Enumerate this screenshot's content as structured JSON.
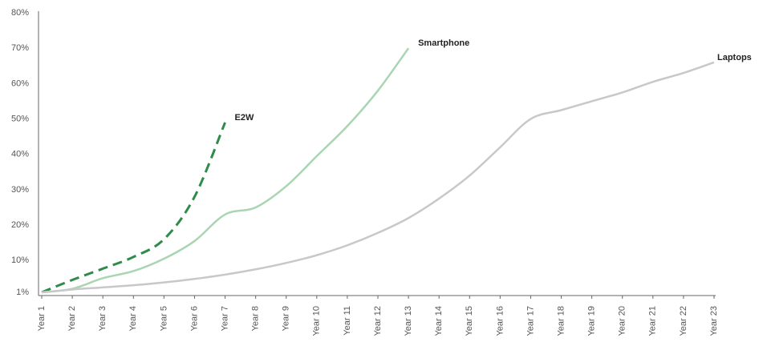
{
  "chart_data": {
    "type": "line",
    "categories": [
      "Year 1",
      "Year 2",
      "Year 3",
      "Year 4",
      "Year 5",
      "Year 6",
      "Year 7",
      "Year 8",
      "Year 9",
      "Year 10",
      "Year 11",
      "Year 12",
      "Year 13",
      "Year 14",
      "Year 15",
      "Year 16",
      "Year 17",
      "Year 18",
      "Year 19",
      "Year 20",
      "Year 21",
      "Year 22",
      "Year 23"
    ],
    "series": [
      {
        "name": "E2W",
        "color": "#2e8b4a",
        "dashed": true,
        "values": [
          1,
          4.5,
          7.7,
          11,
          16,
          28,
          49,
          null,
          null,
          null,
          null,
          null,
          null,
          null,
          null,
          null,
          null,
          null,
          null,
          null,
          null,
          null,
          null
        ]
      },
      {
        "name": "Smartphone",
        "color": "#a9d5b2",
        "dashed": false,
        "values": [
          1,
          2,
          5,
          7,
          10.5,
          15.5,
          23,
          25,
          31,
          39.5,
          48,
          58,
          70,
          null,
          null,
          null,
          null,
          null,
          null,
          null,
          null,
          null,
          null
        ]
      },
      {
        "name": "Laptops",
        "color": "#c8c8c8",
        "dashed": false,
        "values": [
          1,
          1.8,
          2.4,
          3,
          3.8,
          4.8,
          6,
          7.5,
          9.3,
          11.5,
          14.3,
          17.8,
          22,
          27.5,
          34,
          42,
          50,
          52.5,
          55,
          57.5,
          60.5,
          63,
          66
        ]
      }
    ],
    "ylim": [
      1,
      80
    ],
    "yticks": [
      {
        "value": 1,
        "label": "1%"
      },
      {
        "value": 10,
        "label": "10%"
      },
      {
        "value": 20,
        "label": "20%"
      },
      {
        "value": 30,
        "label": "30%"
      },
      {
        "value": 40,
        "label": "40%"
      },
      {
        "value": 50,
        "label": "50%"
      },
      {
        "value": 60,
        "label": "60%"
      },
      {
        "value": 70,
        "label": "70%"
      },
      {
        "value": 80,
        "label": "80%"
      }
    ],
    "grid": false
  }
}
